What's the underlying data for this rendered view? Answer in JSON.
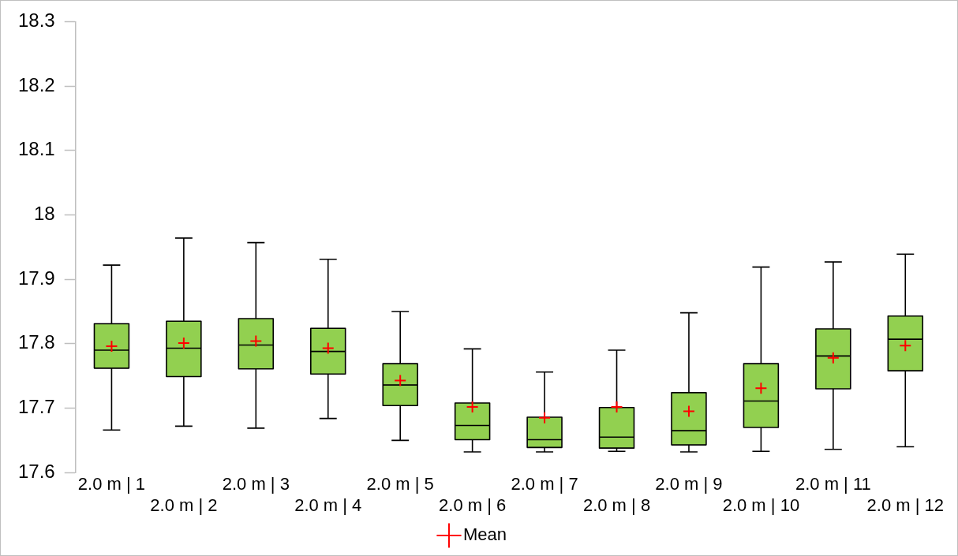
{
  "chart_data": {
    "type": "box",
    "categories": [
      "2.0 m | 1",
      "2.0 m | 2",
      "2.0 m | 3",
      "2.0 m | 4",
      "2.0 m | 5",
      "2.0 m | 6",
      "2.0 m | 7",
      "2.0 m | 8",
      "2.0 m | 9",
      "2.0 m | 10",
      "2.0 m | 11",
      "2.0 m | 12"
    ],
    "color": "#92d050",
    "boxes": [
      {
        "low": 17.666,
        "q1": 17.762,
        "median": 17.79,
        "q3": 17.831,
        "high": 17.922
      },
      {
        "low": 17.672,
        "q1": 17.749,
        "median": 17.793,
        "q3": 17.835,
        "high": 17.964
      },
      {
        "low": 17.669,
        "q1": 17.761,
        "median": 17.798,
        "q3": 17.839,
        "high": 17.957
      },
      {
        "low": 17.684,
        "q1": 17.753,
        "median": 17.788,
        "q3": 17.824,
        "high": 17.931
      },
      {
        "low": 17.65,
        "q1": 17.704,
        "median": 17.736,
        "q3": 17.769,
        "high": 17.85
      },
      {
        "low": 17.632,
        "q1": 17.651,
        "median": 17.673,
        "q3": 17.708,
        "high": 17.792
      },
      {
        "low": 17.632,
        "q1": 17.639,
        "median": 17.651,
        "q3": 17.686,
        "high": 17.756
      },
      {
        "low": 17.633,
        "q1": 17.638,
        "median": 17.655,
        "q3": 17.701,
        "high": 17.79
      },
      {
        "low": 17.632,
        "q1": 17.643,
        "median": 17.665,
        "q3": 17.724,
        "high": 17.848
      },
      {
        "low": 17.633,
        "q1": 17.67,
        "median": 17.711,
        "q3": 17.769,
        "high": 17.919
      },
      {
        "low": 17.636,
        "q1": 17.73,
        "median": 17.781,
        "q3": 17.823,
        "high": 17.927
      },
      {
        "low": 17.64,
        "q1": 17.758,
        "median": 17.807,
        "q3": 17.843,
        "high": 17.939
      }
    ],
    "series": [
      {
        "type": "scatter",
        "name": "Mean",
        "color": "#ff0000",
        "x": [
          "2.0 m | 1",
          "2.0 m | 2",
          "2.0 m | 3",
          "2.0 m | 4",
          "2.0 m | 5",
          "2.0 m | 6",
          "2.0 m | 7",
          "2.0 m | 8",
          "2.0 m | 9",
          "2.0 m | 10",
          "2.0 m | 11",
          "2.0 m | 12"
        ],
        "values": [
          17.796,
          17.801,
          17.804,
          17.793,
          17.743,
          17.702,
          17.685,
          17.702,
          17.695,
          17.731,
          17.778,
          17.797
        ]
      }
    ],
    "marker": "cross",
    "ylim": [
      17.6,
      18.3
    ],
    "yticks": [
      17.6,
      17.7,
      17.8,
      17.9,
      18,
      18.1,
      18.2,
      18.3
    ],
    "grid": false,
    "legend": "bottom"
  }
}
